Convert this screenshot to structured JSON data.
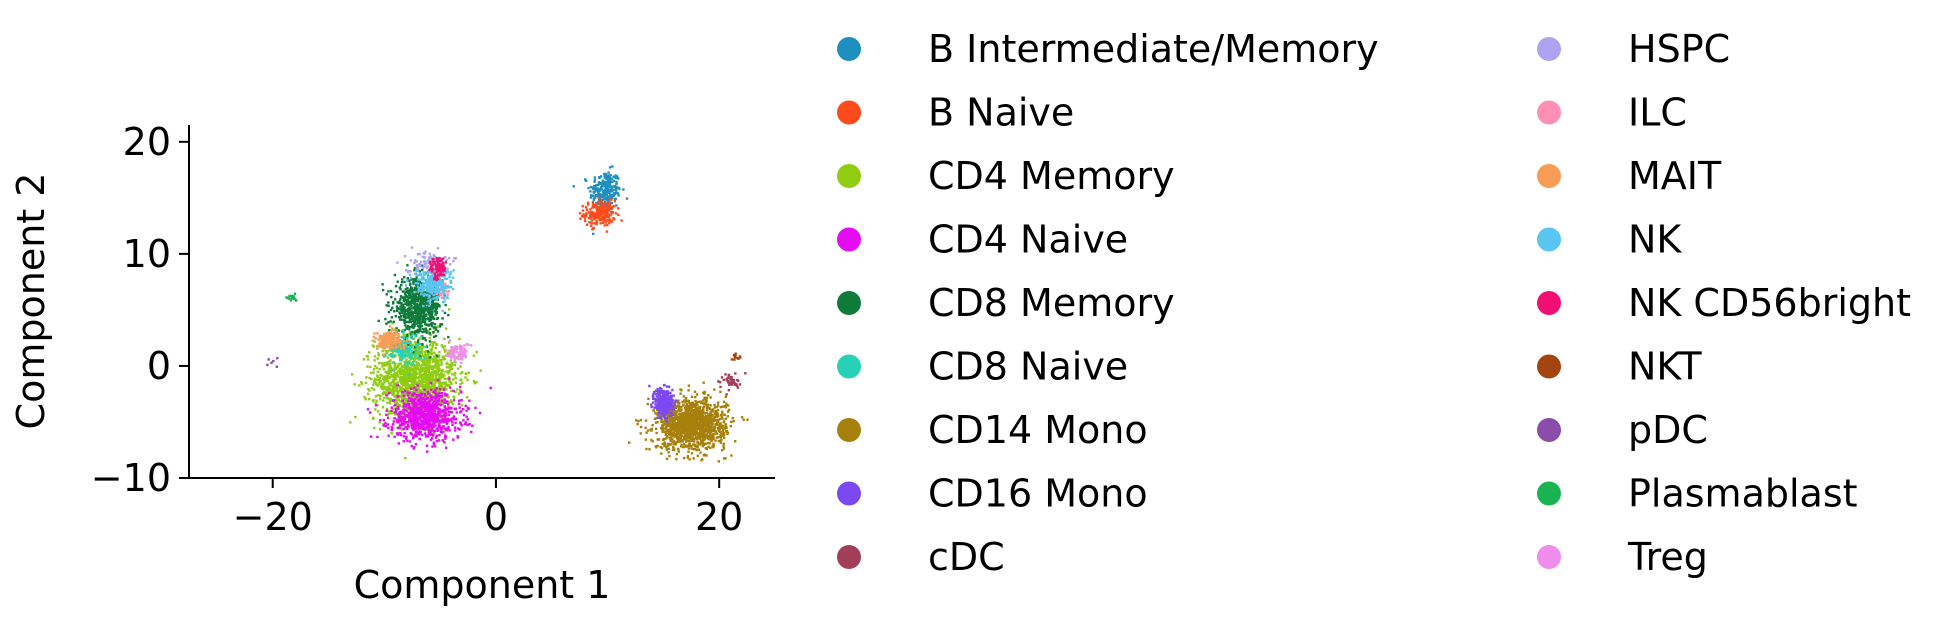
{
  "chart_data": {
    "type": "scatter",
    "title": "",
    "xlabel": "Component 1",
    "ylabel": "Component 2",
    "xlim": [
      -27.5,
      25
    ],
    "ylim": [
      -10,
      21.5
    ],
    "xticks": [
      -20,
      0,
      20
    ],
    "yticks": [
      -10,
      0,
      10,
      20
    ],
    "xtick_labels": [
      "−20",
      "0",
      "20"
    ],
    "ytick_labels": [
      "−10",
      "0",
      "10",
      "20"
    ],
    "grid": false,
    "legend_position": "right, outside plot, two columns",
    "series": [
      {
        "name": "B Intermediate/Memory",
        "color": "#1f8fbf",
        "clusters": [
          {
            "cx": 9.8,
            "cy": 15.6,
            "sx": 1.0,
            "sy": 1.3,
            "n": 240
          }
        ]
      },
      {
        "name": "B Naive",
        "color": "#ff4a1c",
        "clusters": [
          {
            "cx": 9.3,
            "cy": 13.6,
            "sx": 1.0,
            "sy": 0.8,
            "n": 200
          }
        ]
      },
      {
        "name": "CD4 Memory",
        "color": "#8fcc12",
        "clusters": [
          {
            "cx": -7.2,
            "cy": -1.2,
            "sx": 2.6,
            "sy": 2.6,
            "n": 1500
          }
        ]
      },
      {
        "name": "CD4 Naive",
        "color": "#e50bf2",
        "clusters": [
          {
            "cx": -6.3,
            "cy": -4.4,
            "sx": 2.3,
            "sy": 1.6,
            "n": 800
          }
        ]
      },
      {
        "name": "CD8 Memory",
        "color": "#0f7b3a",
        "clusters": [
          {
            "cx": -7.0,
            "cy": 5.2,
            "sx": 1.5,
            "sy": 1.8,
            "n": 700
          }
        ]
      },
      {
        "name": "CD8 Naive",
        "color": "#26d1b7",
        "clusters": [
          {
            "cx": -8.3,
            "cy": 1.5,
            "sx": 1.1,
            "sy": 1.0,
            "n": 140
          }
        ]
      },
      {
        "name": "CD14 Mono",
        "color": "#a6800b",
        "clusters": [
          {
            "cx": 17.5,
            "cy": -5.2,
            "sx": 2.2,
            "sy": 1.6,
            "n": 1300
          }
        ]
      },
      {
        "name": "CD16 Mono",
        "color": "#7a49f2",
        "clusters": [
          {
            "cx": 15.1,
            "cy": -3.3,
            "sx": 0.6,
            "sy": 1.0,
            "n": 260
          }
        ]
      },
      {
        "name": "cDC",
        "color": "#a23e5a",
        "clusters": [
          {
            "cx": 21.0,
            "cy": -1.3,
            "sx": 0.7,
            "sy": 0.5,
            "n": 40
          }
        ]
      },
      {
        "name": "HSPC",
        "color": "#ada3f0",
        "clusters": [
          {
            "cx": -6.3,
            "cy": 9.2,
            "sx": 1.3,
            "sy": 0.8,
            "n": 90
          }
        ]
      },
      {
        "name": "ILC",
        "color": "#ff8fb3",
        "clusters": [
          {
            "cx": -5.0,
            "cy": 7.0,
            "sx": 0.6,
            "sy": 0.6,
            "n": 40
          }
        ]
      },
      {
        "name": "MAIT",
        "color": "#f99c55",
        "clusters": [
          {
            "cx": -9.6,
            "cy": 2.3,
            "sx": 0.9,
            "sy": 0.6,
            "n": 160
          }
        ]
      },
      {
        "name": "NK",
        "color": "#59c6f2",
        "clusters": [
          {
            "cx": -5.6,
            "cy": 7.3,
            "sx": 1.2,
            "sy": 1.0,
            "n": 260
          }
        ]
      },
      {
        "name": "NK CD56bright",
        "color": "#f20f73",
        "clusters": [
          {
            "cx": -5.2,
            "cy": 8.7,
            "sx": 0.5,
            "sy": 0.7,
            "n": 100
          }
        ]
      },
      {
        "name": "NKT",
        "color": "#a34410",
        "clusters": [
          {
            "cx": 21.5,
            "cy": 0.8,
            "sx": 0.3,
            "sy": 0.4,
            "n": 12
          }
        ]
      },
      {
        "name": "pDC",
        "color": "#8a4daa",
        "clusters": [
          {
            "cx": -20.0,
            "cy": 0.2,
            "sx": 0.4,
            "sy": 0.4,
            "n": 6
          }
        ]
      },
      {
        "name": "Plasmablast",
        "color": "#1bb352",
        "clusters": [
          {
            "cx": -18.3,
            "cy": 6.1,
            "sx": 0.3,
            "sy": 0.2,
            "n": 15
          }
        ]
      },
      {
        "name": "Treg",
        "color": "#ef8cec",
        "clusters": [
          {
            "cx": -3.4,
            "cy": 1.2,
            "sx": 0.7,
            "sy": 0.6,
            "n": 80
          }
        ]
      }
    ]
  }
}
